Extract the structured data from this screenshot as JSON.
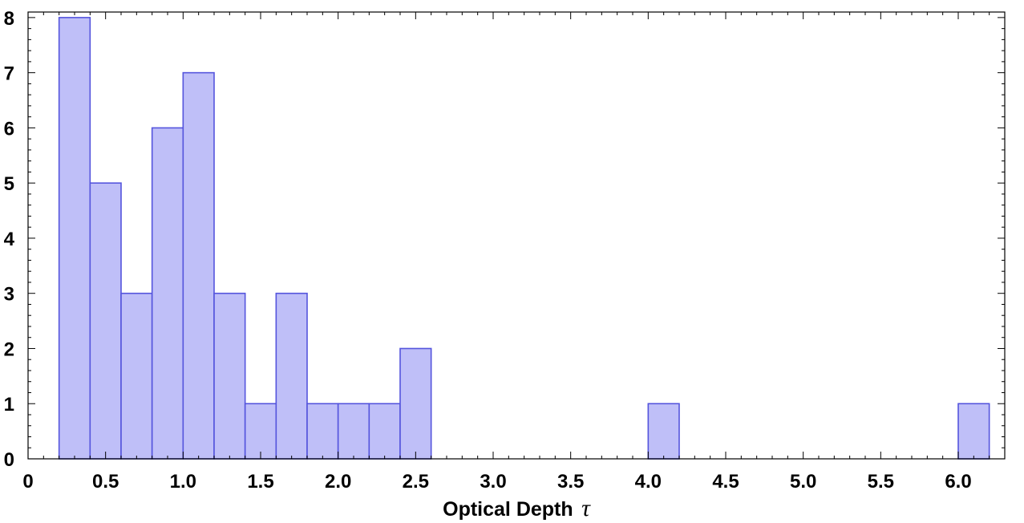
{
  "chart_data": {
    "type": "bar",
    "title": "",
    "xlabel": "Optical Depth",
    "xlabel_symbol": "τ",
    "ylabel": "",
    "bin_width": 0.2,
    "xlim": [
      0,
      6.3
    ],
    "ylim": [
      0,
      8.1
    ],
    "bins": [
      {
        "x0": 0.2,
        "x1": 0.4,
        "count": 8
      },
      {
        "x0": 0.4,
        "x1": 0.6,
        "count": 5
      },
      {
        "x0": 0.6,
        "x1": 0.8,
        "count": 3
      },
      {
        "x0": 0.8,
        "x1": 1.0,
        "count": 6
      },
      {
        "x0": 1.0,
        "x1": 1.2,
        "count": 7
      },
      {
        "x0": 1.2,
        "x1": 1.4,
        "count": 3
      },
      {
        "x0": 1.4,
        "x1": 1.6,
        "count": 1
      },
      {
        "x0": 1.6,
        "x1": 1.8,
        "count": 3
      },
      {
        "x0": 1.8,
        "x1": 2.0,
        "count": 1
      },
      {
        "x0": 2.0,
        "x1": 2.2,
        "count": 1
      },
      {
        "x0": 2.2,
        "x1": 2.4,
        "count": 1
      },
      {
        "x0": 2.4,
        "x1": 2.6,
        "count": 2
      },
      {
        "x0": 4.0,
        "x1": 4.2,
        "count": 1
      },
      {
        "x0": 6.0,
        "x1": 6.2,
        "count": 1
      }
    ],
    "x_ticks": [
      {
        "value": 0,
        "label": "0"
      },
      {
        "value": 0.5,
        "label": "0.5"
      },
      {
        "value": 1.0,
        "label": "1.0"
      },
      {
        "value": 1.5,
        "label": "1.5"
      },
      {
        "value": 2.0,
        "label": "2.0"
      },
      {
        "value": 2.5,
        "label": "2.5"
      },
      {
        "value": 3.0,
        "label": "3.0"
      },
      {
        "value": 3.5,
        "label": "3.5"
      },
      {
        "value": 4.0,
        "label": "4.0"
      },
      {
        "value": 4.5,
        "label": "4.5"
      },
      {
        "value": 5.0,
        "label": "5.0"
      },
      {
        "value": 5.5,
        "label": "5.5"
      },
      {
        "value": 6.0,
        "label": "6.0"
      }
    ],
    "y_ticks": [
      {
        "value": 0,
        "label": "0"
      },
      {
        "value": 1,
        "label": "1"
      },
      {
        "value": 2,
        "label": "2"
      },
      {
        "value": 3,
        "label": "3"
      },
      {
        "value": 4,
        "label": "4"
      },
      {
        "value": 5,
        "label": "5"
      },
      {
        "value": 6,
        "label": "6"
      },
      {
        "value": 7,
        "label": "7"
      },
      {
        "value": 8,
        "label": "8"
      }
    ],
    "x_minor_step": 0.1,
    "y_minor_step": 0.2,
    "grid": false,
    "legend": "none",
    "colors": {
      "bar_fill": "#bfbff8",
      "bar_stroke": "#5555dd",
      "frame": "#000000"
    }
  }
}
